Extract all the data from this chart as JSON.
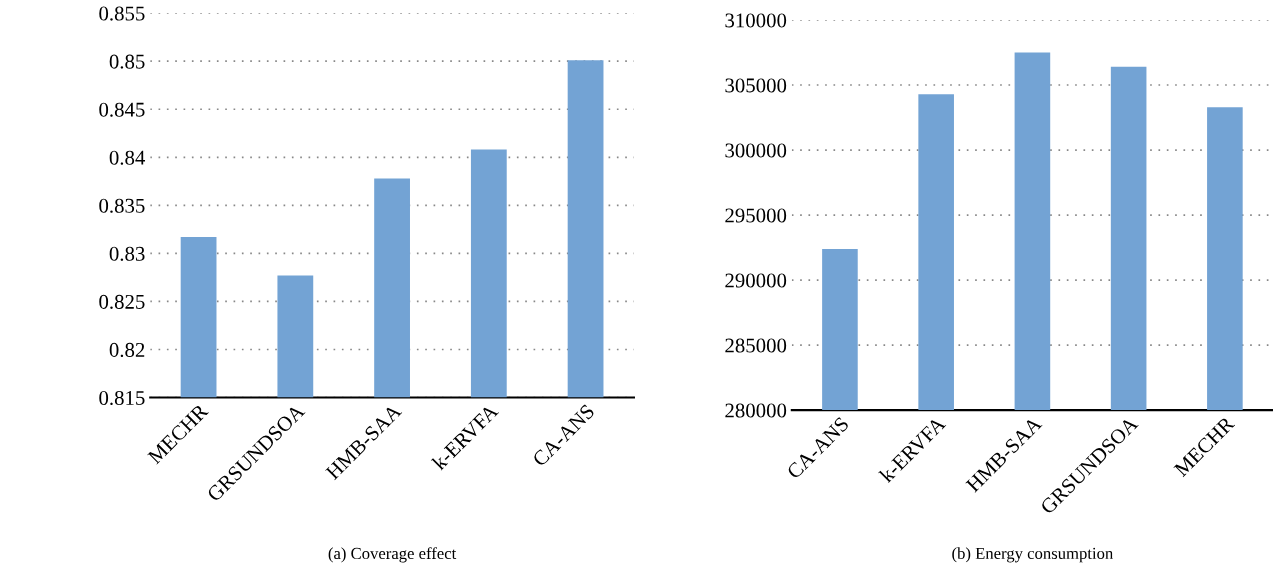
{
  "chart_data": [
    {
      "type": "bar",
      "categories": [
        "MECHR",
        "GRSUNDSOA",
        "HMB-SAA",
        "k-ERVFA",
        "CA-ANS"
      ],
      "values": [
        0.8317,
        0.8277,
        0.8378,
        0.8408,
        0.8501
      ],
      "color": "#73a3d4",
      "ylim": [
        0.815,
        0.855
      ],
      "yticks": [
        0.815,
        0.82,
        0.825,
        0.83,
        0.835,
        0.84,
        0.845,
        0.85,
        0.855
      ],
      "grid": "y",
      "annotations": [
        "(a) Coverage effect"
      ]
    },
    {
      "type": "bar",
      "categories": [
        "CA-ANS",
        "k-ERVFA",
        "HMB-SAA",
        "GRSUNDSOA",
        "MECHR"
      ],
      "values": [
        292400,
        304300,
        307500,
        306400,
        303300
      ],
      "color": "#73a3d4",
      "ylim": [
        280000,
        310000
      ],
      "yticks": [
        280000,
        285000,
        290000,
        295000,
        300000,
        305000,
        310000
      ],
      "grid": "y",
      "annotations": [
        "(b) Energy consumption"
      ]
    }
  ]
}
